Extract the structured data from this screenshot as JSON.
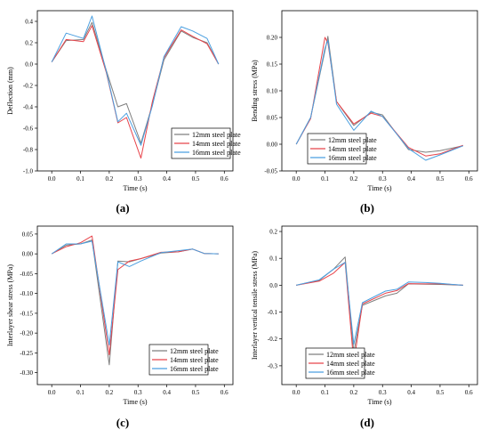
{
  "figure": {
    "colors": {
      "s12": "#7f7f7f",
      "s14": "#e8434a",
      "s16": "#4a9fe0",
      "axis": "#000000"
    }
  },
  "chart_data": [
    {
      "type": "line",
      "panel_label": "(a)",
      "xlabel": "Time (s)",
      "ylabel": "Deflection (mm)",
      "xlim": [
        -0.05,
        0.63
      ],
      "ylim": [
        -1.0,
        0.5
      ],
      "xticks": [
        "0.0",
        "0.1",
        "0.2",
        "0.3",
        "0.4",
        "0.5",
        "0.6"
      ],
      "yticks": [
        "0.4",
        "0.2",
        "0.0",
        "-0.2",
        "-0.4",
        "-0.6",
        "-0.8",
        "-1.0"
      ],
      "x": [
        0.0,
        0.05,
        0.11,
        0.14,
        0.19,
        0.23,
        0.26,
        0.31,
        0.35,
        0.39,
        0.45,
        0.49,
        0.54,
        0.58
      ],
      "series": [
        {
          "name": "12mm steel plate",
          "values": [
            0.02,
            0.22,
            0.23,
            0.39,
            -0.06,
            -0.4,
            -0.37,
            -0.74,
            -0.38,
            0.04,
            0.31,
            0.25,
            0.2,
            0.0
          ]
        },
        {
          "name": "14mm steel plate",
          "values": [
            0.02,
            0.23,
            0.21,
            0.36,
            -0.08,
            -0.55,
            -0.5,
            -0.88,
            -0.35,
            0.06,
            0.32,
            0.26,
            0.19,
            0.0
          ]
        },
        {
          "name": "16mm steel plate",
          "values": [
            0.02,
            0.29,
            0.24,
            0.45,
            -0.07,
            -0.54,
            -0.46,
            -0.76,
            -0.39,
            0.07,
            0.35,
            0.31,
            0.24,
            0.0
          ]
        }
      ]
    },
    {
      "type": "line",
      "panel_label": "(b)",
      "xlabel": "Time (s)",
      "ylabel": "Bending stress (MPa)",
      "xlim": [
        -0.05,
        0.63
      ],
      "ylim": [
        -0.05,
        0.25
      ],
      "xticks": [
        "0.0",
        "0.1",
        "0.2",
        "0.3",
        "0.4",
        "0.5",
        "0.6"
      ],
      "yticks": [
        "0.20",
        "0.15",
        "0.10",
        "0.05",
        "0.00",
        "-0.05"
      ],
      "x": [
        0.0,
        0.05,
        0.1,
        0.11,
        0.14,
        0.2,
        0.26,
        0.3,
        0.39,
        0.45,
        0.5,
        0.58
      ],
      "series": [
        {
          "name": "12mm steel plate",
          "values": [
            0.0,
            0.05,
            0.175,
            0.202,
            0.08,
            0.035,
            0.06,
            0.055,
            -0.01,
            -0.015,
            -0.012,
            -0.003
          ]
        },
        {
          "name": "14mm steel plate",
          "values": [
            0.0,
            0.048,
            0.2,
            0.19,
            0.08,
            0.038,
            0.058,
            0.052,
            -0.006,
            -0.022,
            -0.018,
            -0.002
          ]
        },
        {
          "name": "16mm steel plate",
          "values": [
            0.0,
            0.05,
            0.18,
            0.195,
            0.075,
            0.026,
            0.062,
            0.052,
            -0.008,
            -0.03,
            -0.02,
            -0.003
          ]
        }
      ]
    },
    {
      "type": "line",
      "panel_label": "(c)",
      "xlabel": "Time (s)",
      "ylabel": "Interlayer shear stress (MPa)",
      "xlim": [
        -0.05,
        0.63
      ],
      "ylim": [
        -0.33,
        0.07
      ],
      "xticks": [
        "0.0",
        "0.1",
        "0.2",
        "0.3",
        "0.4",
        "0.5",
        "0.6"
      ],
      "yticks": [
        "0.05",
        "0.00",
        "-0.05",
        "-0.10",
        "-0.15",
        "-0.20",
        "-0.25",
        "-0.30"
      ],
      "x": [
        0.0,
        0.05,
        0.1,
        0.14,
        0.2,
        0.23,
        0.27,
        0.31,
        0.38,
        0.44,
        0.49,
        0.53,
        0.58
      ],
      "series": [
        {
          "name": "12mm steel plate",
          "values": [
            0.0,
            0.022,
            0.025,
            0.035,
            -0.28,
            -0.018,
            -0.02,
            -0.012,
            0.002,
            0.005,
            0.012,
            0.001,
            0.0
          ]
        },
        {
          "name": "14mm steel plate",
          "values": [
            0.0,
            0.018,
            0.028,
            0.045,
            -0.255,
            -0.04,
            -0.018,
            -0.012,
            0.004,
            0.005,
            0.012,
            0.001,
            0.0
          ]
        },
        {
          "name": "16mm steel plate",
          "values": [
            0.0,
            0.025,
            0.025,
            0.032,
            -0.23,
            -0.02,
            -0.032,
            -0.018,
            0.003,
            0.008,
            0.012,
            0.001,
            0.0
          ]
        }
      ]
    },
    {
      "type": "line",
      "panel_label": "(d)",
      "xlabel": "Time (s)",
      "ylabel": "Interlayer vertical tensile stress (MPa)",
      "xlim": [
        -0.05,
        0.63
      ],
      "ylim": [
        -0.37,
        0.22
      ],
      "xticks": [
        "0.0",
        "0.1",
        "0.2",
        "0.3",
        "0.4",
        "0.5",
        "0.6"
      ],
      "yticks": [
        "0.2",
        "0.1",
        "0.0",
        "-0.1",
        "-0.2",
        "-0.3"
      ],
      "x": [
        0.0,
        0.08,
        0.13,
        0.17,
        0.2,
        0.23,
        0.31,
        0.35,
        0.39,
        0.45,
        0.5,
        0.58
      ],
      "series": [
        {
          "name": "12mm steel plate",
          "values": [
            0.0,
            0.018,
            0.06,
            0.105,
            -0.25,
            -0.075,
            -0.04,
            -0.03,
            0.005,
            0.004,
            0.003,
            0.0
          ]
        },
        {
          "name": "14mm steel plate",
          "values": [
            0.0,
            0.015,
            0.045,
            0.085,
            -0.29,
            -0.07,
            -0.03,
            -0.02,
            0.006,
            0.005,
            0.006,
            0.0
          ]
        },
        {
          "name": "16mm steel plate",
          "values": [
            0.0,
            0.02,
            0.06,
            0.085,
            -0.22,
            -0.065,
            -0.022,
            -0.015,
            0.012,
            0.01,
            0.007,
            0.0
          ]
        }
      ]
    }
  ]
}
